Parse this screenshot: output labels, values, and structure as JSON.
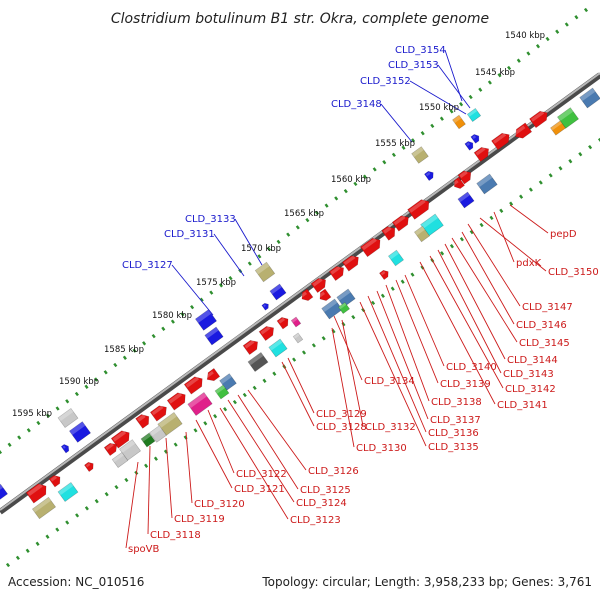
{
  "title": "Clostridium botulinum B1 str. Okra, complete genome",
  "footer": {
    "accession": "Accession: NC_010516",
    "topology": "Topology: circular; Length: 3,958,233 bp; Genes: 3,761"
  },
  "ruler": [
    "1540 kbp",
    "1545 kbp",
    "1550 kbp",
    "1555 kbp",
    "1560 kbp",
    "1565 kbp",
    "1570 kbp",
    "1575 kbp",
    "1580 kbp",
    "1585 kbp",
    "1590 kbp",
    "1595 kbp"
  ],
  "labels_top": [
    "CLD_3154",
    "CLD_3153",
    "CLD_3152",
    "CLD_3148",
    "CLD_3133",
    "CLD_3131",
    "CLD_3127"
  ],
  "labels_bottom": [
    "pepD",
    "pdxK",
    "CLD_3150",
    "CLD_3147",
    "CLD_3146",
    "CLD_3145",
    "CLD_3144",
    "CLD_3143",
    "CLD_3142",
    "CLD_3141",
    "CLD_3140",
    "CLD_3139",
    "CLD_3138",
    "CLD_3137",
    "CLD_3136",
    "CLD_3135",
    "CLD_3134",
    "CLD_3132",
    "CLD_3130",
    "CLD_3129",
    "CLD_3128",
    "CLD_3126",
    "CLD_3125",
    "CLD_3124",
    "CLD_3123",
    "CLD_3122",
    "CLD_3121",
    "CLD_3120",
    "CLD_3119",
    "CLD_3118",
    "spoVB"
  ],
  "colors": {
    "backbone": "#8c8c8c",
    "ruler_dots": "#2f8f2f",
    "forward_labels": "#1a1acc",
    "reverse_labels": "#cc1a1a",
    "gene_red": "#e01010",
    "gene_blue": "#1a1ae0",
    "gene_steel": "#4a7ab0",
    "gene_cyan": "#20e0e0",
    "gene_olive": "#b8b070",
    "gene_green": "#207a20",
    "gene_pink": "#e0208a",
    "gene_gray": "#c8c8c8",
    "gene_dark": "#555555",
    "gene_orange": "#f0900a",
    "gene_lime": "#40c040"
  }
}
